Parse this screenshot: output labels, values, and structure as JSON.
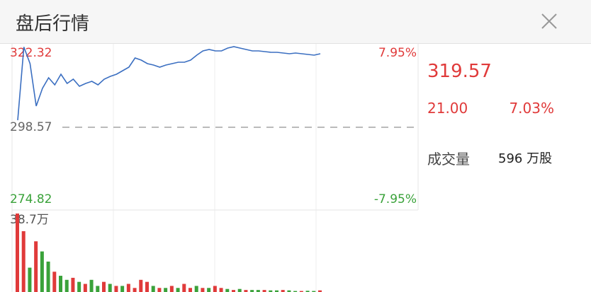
{
  "header": {
    "title": "盘后行情"
  },
  "quote": {
    "price": "319.57",
    "change": "21.00",
    "change_pct": "7.03%",
    "volume_label": "成交量",
    "volume": "596 万股"
  },
  "chart_data": [
    {
      "type": "line",
      "color": "#3b6fc1",
      "categories": [
        null,
        null,
        null,
        null,
        null,
        null,
        null,
        null,
        null,
        null,
        null,
        null,
        null,
        null,
        null,
        null,
        null,
        null,
        null,
        null,
        null,
        null,
        null,
        null,
        null,
        null,
        null,
        null,
        null,
        null,
        null,
        null,
        null,
        null,
        null,
        null,
        null,
        null,
        null,
        null,
        null,
        null,
        null,
        null,
        null,
        null,
        null,
        null,
        null,
        null
      ],
      "values": [
        300.64,
        322.0,
        317.16,
        304.77,
        309.93,
        313.03,
        310.96,
        314.06,
        311.37,
        312.61,
        310.55,
        311.37,
        311.99,
        310.96,
        312.61,
        313.44,
        314.06,
        315.09,
        316.12,
        318.81,
        318.19,
        317.16,
        316.74,
        316.12,
        316.74,
        317.16,
        317.57,
        317.57,
        318.19,
        319.64,
        320.87,
        321.29,
        320.87,
        320.87,
        321.7,
        322.11,
        321.7,
        321.29,
        320.87,
        320.87,
        320.67,
        320.46,
        320.46,
        320.25,
        320.05,
        320.25,
        320.05,
        319.84,
        319.64,
        320.05
      ],
      "ylim": [
        274.82,
        322.32
      ],
      "yticks": [
        322.32,
        298.57,
        274.82
      ],
      "ytick_colors": [
        "#e03a3a",
        "#666666",
        "#3aa23a"
      ],
      "y2lim": [
        -7.95,
        7.95
      ],
      "y2ticks": [
        {
          "value": 7.95,
          "label": "7.95%"
        },
        {
          "value": -7.95,
          "label": "-7.95%"
        }
      ],
      "y2tick_colors": [
        "#e03a3a",
        "#3aa23a"
      ]
    },
    {
      "type": "bar",
      "categories": [
        null,
        null,
        null,
        null,
        null,
        null,
        null,
        null,
        null,
        null,
        null,
        null,
        null,
        null,
        null,
        null,
        null,
        null,
        null,
        null,
        null,
        null,
        null,
        null,
        null,
        null,
        null,
        null,
        null,
        null,
        null,
        null,
        null,
        null,
        null,
        null,
        null,
        null,
        null,
        null,
        null,
        null,
        null,
        null,
        null,
        null,
        null,
        null,
        null,
        null
      ],
      "values": [
        38.7,
        30,
        12,
        25,
        20,
        15,
        10,
        8,
        6,
        7,
        5,
        4,
        6,
        3,
        5,
        4,
        3,
        3,
        4,
        2,
        6,
        5,
        3,
        2,
        2,
        3,
        2,
        4,
        2,
        3,
        2,
        2,
        3,
        2,
        1.5,
        1,
        1.5,
        1,
        1,
        1,
        1,
        0.8,
        0.8,
        1,
        0.8,
        0.5,
        0.5,
        0.6,
        0.5,
        0.8
      ],
      "colors": [
        "#e03a3a",
        "#e03a3a",
        "#3aa23a",
        "#e03a3a",
        "#3aa23a",
        "#3aa23a",
        "#e03a3a",
        "#3aa23a",
        "#3aa23a",
        "#e03a3a",
        "#3aa23a",
        "#e03a3a",
        "#3aa23a",
        "#3aa23a",
        "#e03a3a",
        "#3aa23a",
        "#e03a3a",
        "#3aa23a",
        "#e03a3a",
        "#e03a3a",
        "#e03a3a",
        "#e03a3a",
        "#3aa23a",
        "#e03a3a",
        "#3aa23a",
        "#e03a3a",
        "#3aa23a",
        "#e03a3a",
        "#e03a3a",
        "#3aa23a",
        "#e03a3a",
        "#3aa23a",
        "#e03a3a",
        "#e03a3a",
        "#3aa23a",
        "#e03a3a",
        "#3aa23a",
        "#e03a3a",
        "#3aa23a",
        "#3aa23a",
        "#e03a3a",
        "#3aa23a",
        "#3aa23a",
        "#e03a3a",
        "#3aa23a",
        "#3aa23a",
        "#e03a3a",
        "#3aa23a",
        "#3aa23a",
        "#e03a3a"
      ],
      "ylim": [
        0,
        38.7
      ],
      "yticks": [
        {
          "value": 38.7,
          "label": "38.7万"
        }
      ]
    }
  ]
}
